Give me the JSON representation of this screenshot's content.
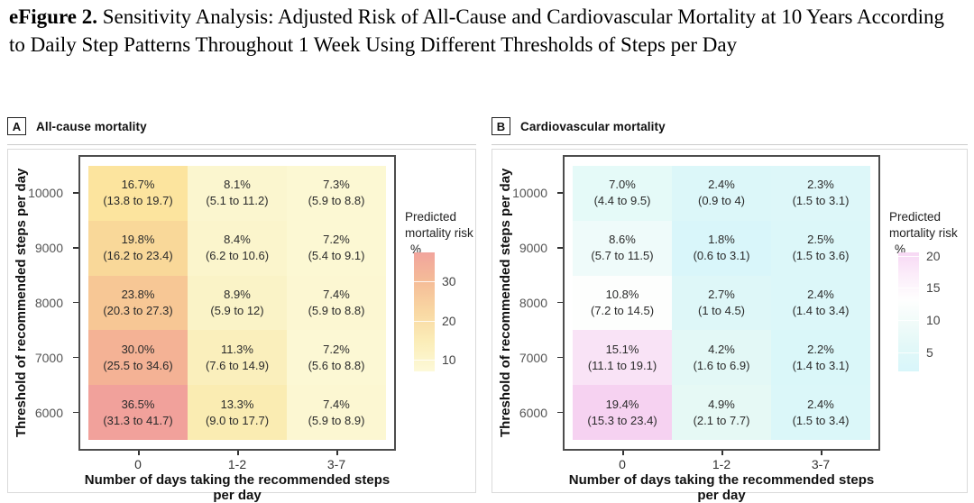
{
  "figure_title": {
    "prefix": "eFigure 2.",
    "text": " Sensitivity Analysis: Adjusted Risk of All-Cause and Cardiovascular Mortality at 10 Years According to Daily Step Patterns Throughout 1 Week Using Different Thresholds of Steps per Day"
  },
  "chart_data": [
    {
      "type": "heatmap",
      "panel_letter": "A",
      "title": "All-cause mortality",
      "xlabel": "Number of days taking the recommended steps per day",
      "ylabel": "Threshold of recommended steps per day",
      "x_categories": [
        "0",
        "1-2",
        "3-7"
      ],
      "y_categories": [
        "10000",
        "9000",
        "8000",
        "7000",
        "6000"
      ],
      "cells": [
        [
          {
            "value": "16.7%",
            "ci": "(13.8 to 19.7)",
            "color": "#fce49e"
          },
          {
            "value": "8.1%",
            "ci": "(5.1 to 11.2)",
            "color": "#fbf6cf"
          },
          {
            "value": "7.3%",
            "ci": "(5.9 to 8.8)",
            "color": "#fcf8d3"
          }
        ],
        [
          {
            "value": "19.8%",
            "ci": "(16.2 to 23.4)",
            "color": "#f9d899"
          },
          {
            "value": "8.4%",
            "ci": "(6.2 to 10.6)",
            "color": "#fbf5cc"
          },
          {
            "value": "7.2%",
            "ci": "(5.4 to 9.1)",
            "color": "#fcf8d3"
          }
        ],
        [
          {
            "value": "23.8%",
            "ci": "(20.3 to 27.3)",
            "color": "#f7c795"
          },
          {
            "value": "8.9%",
            "ci": "(5.9 to 12)",
            "color": "#faf3c7"
          },
          {
            "value": "7.4%",
            "ci": "(5.9 to 8.8)",
            "color": "#fcf7d2"
          }
        ],
        [
          {
            "value": "30.0%",
            "ci": "(25.5 to 34.6)",
            "color": "#f4b295"
          },
          {
            "value": "11.3%",
            "ci": "(7.6 to 14.9)",
            "color": "#faefbc"
          },
          {
            "value": "7.2%",
            "ci": "(5.6 to 8.8)",
            "color": "#fcf8d4"
          }
        ],
        [
          {
            "value": "36.5%",
            "ci": "(31.3 to 41.7)",
            "color": "#f1a19b"
          },
          {
            "value": "13.3%",
            "ci": "(9.0 to 17.7)",
            "color": "#faecb2"
          },
          {
            "value": "7.4%",
            "ci": "(5.9 to 8.9)",
            "color": "#fcf7d2"
          }
        ]
      ],
      "legend": {
        "title": "Predicted mortality risk",
        "unit": "%",
        "ticks": [
          30,
          20,
          10
        ],
        "scale_max": 37.5,
        "scale_min": 7,
        "gradient": [
          "#f1a49c",
          "#f5bd98",
          "#f9d8a3",
          "#fbedb8",
          "#fdf9d8"
        ]
      }
    },
    {
      "type": "heatmap",
      "panel_letter": "B",
      "title": "Cardiovascular mortality",
      "xlabel": "Number of days taking the recommended steps per day",
      "ylabel": "Threshold of recommended steps per day",
      "x_categories": [
        "0",
        "1-2",
        "3-7"
      ],
      "y_categories": [
        "10000",
        "9000",
        "8000",
        "7000",
        "6000"
      ],
      "cells": [
        [
          {
            "value": "7.0%",
            "ci": "(4.4 to 9.5)",
            "color": "#e5faf8"
          },
          {
            "value": "2.4%",
            "ci": "(0.9 to 4)",
            "color": "#dcf7f9"
          },
          {
            "value": "2.3%",
            "ci": "(1.5 to 3.1)",
            "color": "#ddf7f9"
          }
        ],
        [
          {
            "value": "8.6%",
            "ci": "(5.7 to 11.5)",
            "color": "#effbfa"
          },
          {
            "value": "1.8%",
            "ci": "(0.6 to 3.1)",
            "color": "#d9f6fa"
          },
          {
            "value": "2.5%",
            "ci": "(1.5 to 3.6)",
            "color": "#dcf7f9"
          }
        ],
        [
          {
            "value": "10.8%",
            "ci": "(7.2 to 14.5)",
            "color": "#fdfefd"
          },
          {
            "value": "2.7%",
            "ci": "(1 to 4.5)",
            "color": "#def7f8"
          },
          {
            "value": "2.4%",
            "ci": "(1.4 to 3.4)",
            "color": "#dcf7f9"
          }
        ],
        [
          {
            "value": "15.1%",
            "ci": "(11.1 to 19.1)",
            "color": "#f9e3f6"
          },
          {
            "value": "4.2%",
            "ci": "(1.6 to 6.9)",
            "color": "#e3f8f6"
          },
          {
            "value": "2.2%",
            "ci": "(1.4 to 3.1)",
            "color": "#daf7f9"
          }
        ],
        [
          {
            "value": "19.4%",
            "ci": "(15.3 to 23.4)",
            "color": "#f6d2f1"
          },
          {
            "value": "4.9%",
            "ci": "(2.1 to 7.7)",
            "color": "#e6f9f5"
          },
          {
            "value": "2.4%",
            "ci": "(1.5 to 3.4)",
            "color": "#dbf7f9"
          }
        ]
      ],
      "legend": {
        "title": "Predicted mortality risk",
        "unit": "%",
        "ticks": [
          20,
          15,
          10,
          5
        ],
        "scale_max": 20.5,
        "scale_min": 2,
        "gradient": [
          "#f7d8f4",
          "#fceefa",
          "#fefefe",
          "#f0fbf9",
          "#e2f8f8",
          "#d8f6fa"
        ]
      }
    }
  ]
}
